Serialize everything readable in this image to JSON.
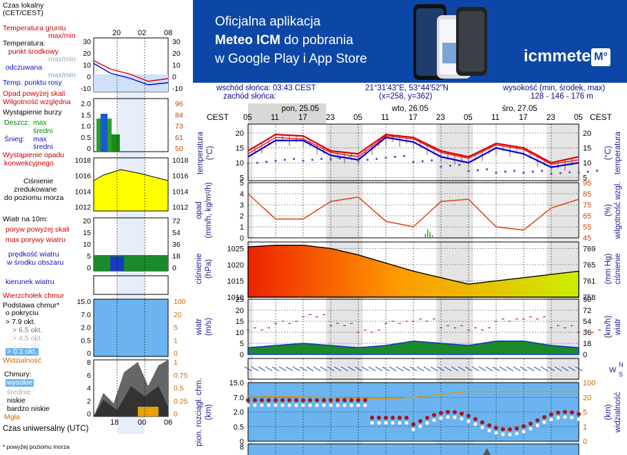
{
  "banner": {
    "line1": "Oficjalna aplikacja",
    "line2_bold": "Meteo ICM",
    "line2_rest": " do pobrania",
    "line3": "w Google Play i App Store",
    "logo": "icmmeteo",
    "logo_badge": "M°"
  },
  "info": {
    "sunrise": "wschód słońca: 03:43 CEST",
    "sunset": "zachód słońca:",
    "coords": "21°31'43\"E, 53°44'52\"N",
    "grid": "(x=258, y=362)",
    "height_label": "wysokość (min, środek, max)",
    "height_values": "128 - 146 - 176 m"
  },
  "legend": {
    "local_time": "Czas lokalny",
    "local_time_tz": "(CET/CEST)",
    "soil_temp": "Temperatura gruntu",
    "soil_temp_mm": "max/min",
    "temperature": "Temperatura:",
    "mid_point": "punkt środkowy",
    "max_min": "max/min",
    "apparent": "odczuwana",
    "dew_point": "Temp. punktu rosy",
    "precip_above": "Opad powyżej skali",
    "humidity": "Wilgotność względna",
    "thunder": "Wystąpienie burzy",
    "rain": "Deszcz:",
    "max": "max",
    "mean": "średni",
    "snow": "Śnieg:",
    "conv_precip": "Wystąpienie opadu",
    "conv_precip2": "konwekcyjnego",
    "pressure1": "Ciśnienie",
    "pressure2": "zredukowane",
    "pressure3": "do poziomu morza",
    "wind_10m": "Wiatr na 10m:",
    "gust_above": "poryw powyżej skali",
    "max_gust": "max porywy wiatru",
    "wind_speed": "prędkość wiatru",
    "wind_area": "w środku obszaru",
    "wind_dir": "kierunek wiatru",
    "cloud_top": "Wierzchołek chmur",
    "cloud_base": "Podstawa chmur*",
    "by_cover": "o pokryciu",
    "okt79": "> 7.9 okt.",
    "okt65": "> 6.5 okt.",
    "okt45": "> 4.5 okt.",
    "okt25": "> 2.5 okt.",
    "okt01": "> 0.1 okt.",
    "visibility": "Widzialność",
    "clouds": "Chmury:",
    "high": "wysokie",
    "middle": "średnie",
    "low": "niskie",
    "very_low": "bardzo niskie",
    "fog": "Mgła",
    "utc": "Czas uniwersalny (UTC)",
    "footnote": "* powyżej poziomu morza"
  },
  "mini_axes": {
    "local_ticks": [
      "20",
      "02",
      "08"
    ],
    "utc_ticks": [
      "18",
      "00",
      "06"
    ],
    "temp_left": [
      "30",
      "20",
      "10",
      "0",
      "-10"
    ],
    "temp_right": [
      "30",
      "20",
      "10",
      "0",
      "-10"
    ],
    "precip_left": [
      "2.0",
      "1.5",
      "1.0",
      "0.5",
      "0"
    ],
    "hum_right": [
      "96",
      "84",
      "73",
      "61",
      "50"
    ],
    "pres_left": [
      "1018",
      "1016",
      "1014",
      "1012"
    ],
    "pres_right": [
      "1018",
      "1016",
      "1014",
      "1012"
    ],
    "wind_left": [
      "20",
      "15",
      "10",
      "5",
      "0"
    ],
    "wind_right": [
      "72",
      "54",
      "36",
      "18",
      "0"
    ],
    "cb_left": [
      "15.0",
      "7.0",
      "2.0",
      "0.5",
      "0"
    ],
    "cb_right": [
      "100",
      "20",
      "5",
      "1",
      "0"
    ],
    "cl_left": [
      "8",
      "6",
      "4",
      "2",
      "0"
    ],
    "cl_right": [
      "1",
      "0.75",
      "0.5",
      "0.25",
      "0"
    ]
  },
  "main": {
    "cest": "CEST",
    "days": [
      "pon, 25.05",
      "wto, 26.05",
      "śro, 27.05"
    ],
    "hours": [
      "05",
      "11",
      "17",
      "23",
      "05",
      "11",
      "17",
      "23",
      "05",
      "11",
      "17",
      "23",
      "05"
    ],
    "temp_title": "temperatura",
    "temp_unit": "(°C)",
    "temp_ticks": [
      "20",
      "15",
      "10",
      "5"
    ],
    "precip_title": "opad",
    "precip_unit": "(mm/h, kg/m²/h)",
    "precip_ticks": [
      "5",
      "4",
      "3",
      "2",
      "1",
      "0"
    ],
    "hum_title": "wilgotność wzgl.",
    "hum_unit": "(%)",
    "hum_ticks": [
      "95",
      "85",
      "75",
      "65",
      "55",
      "45"
    ],
    "pres_title": "ciśnienie",
    "pres_unit": "(hPa)",
    "pres_ticks": [
      "1025",
      "1020",
      "1015",
      "1010"
    ],
    "pres_unit_r": "(mm Hg)",
    "pres_ticks_r": [
      "769",
      "765",
      "761",
      "758"
    ],
    "wind_title": "wiatr",
    "wind_unit": "(m/s)",
    "wind_ticks": [
      "25",
      "20",
      "15",
      "10",
      "5",
      "0"
    ],
    "wind_unit_r": "(km/h)",
    "wind_ticks_r": [
      "90",
      "72",
      "54",
      "36",
      "18",
      "0"
    ],
    "cb_title": "pion. rozciągł. chm.",
    "cb_unit": "(km)",
    "cb_ticks": [
      "15.0",
      "7.0",
      "2.0",
      "0.5",
      "0"
    ],
    "vis_title": "widzialność",
    "vis_unit": "(km)",
    "vis_ticks": [
      "100",
      "20",
      "5",
      "1",
      "0"
    ],
    "cl_tick": "8"
  },
  "colors": {
    "temp": "#dd0000",
    "apparent": "#0000dd",
    "dew": "#5555cc",
    "humidity": "#dd4411",
    "pres_hi": "#ee2200",
    "pres_lo": "#ccee00",
    "wind_lo": "#006600",
    "wind_hi": "#1133cc",
    "sky": "#6cb4ef",
    "banner": "#0c47a8"
  },
  "chart_data": [
    {
      "type": "line",
      "title": "temperatura",
      "ylabel": "(°C)",
      "ylim": [
        4,
        23
      ],
      "x": [
        "25.05 05",
        "25.05 11",
        "25.05 17",
        "25.05 23",
        "26.05 05",
        "26.05 11",
        "26.05 17",
        "26.05 23",
        "27.05 05",
        "27.05 11",
        "27.05 17",
        "27.05 23",
        "28.05 05"
      ],
      "series": [
        {
          "name": "max",
          "values": [
            14,
            19.5,
            19,
            14,
            13,
            19.5,
            18.5,
            14,
            12,
            16.5,
            15,
            10,
            12
          ]
        },
        {
          "name": "punkt środkowy",
          "values": [
            13,
            18.5,
            18,
            13.5,
            12,
            19,
            18,
            13.5,
            11.5,
            16,
            14.5,
            9.5,
            11
          ]
        },
        {
          "name": "odczuwana",
          "values": [
            12,
            17.5,
            17.5,
            12.5,
            11,
            18.5,
            17,
            12,
            10,
            15,
            13,
            8.5,
            10
          ]
        },
        {
          "name": "Temp. punktu rosy",
          "values": [
            10,
            11,
            11,
            11.5,
            11,
            12,
            10.5,
            9,
            7.5,
            7,
            7,
            6.5,
            7
          ]
        }
      ]
    },
    {
      "type": "line",
      "title": "wilgotność wzgl.",
      "ylabel": "(%)",
      "ylim": [
        45,
        95
      ],
      "x": [
        "25.05 05",
        "25.05 11",
        "25.05 17",
        "25.05 23",
        "26.05 05",
        "26.05 11",
        "26.05 17",
        "26.05 23",
        "27.05 05",
        "27.05 11",
        "27.05 17",
        "27.05 23",
        "28.05 05"
      ],
      "values": [
        85,
        62,
        62,
        78,
        82,
        60,
        55,
        78,
        80,
        55,
        52,
        72,
        80
      ]
    },
    {
      "type": "area",
      "title": "ciśnienie",
      "ylabel": "(hPa)",
      "ylim": [
        1010,
        1027
      ],
      "x": [
        "25.05 05",
        "25.05 11",
        "25.05 17",
        "25.05 23",
        "26.05 05",
        "26.05 11",
        "26.05 17",
        "26.05 23",
        "27.05 05",
        "27.05 11",
        "27.05 17",
        "27.05 23",
        "28.05 05"
      ],
      "values": [
        1025.5,
        1026,
        1026,
        1025,
        1023,
        1020.5,
        1018,
        1016,
        1014,
        1015,
        1016,
        1017,
        1018
      ]
    },
    {
      "type": "line",
      "title": "wiatr",
      "ylabel": "(m/s)",
      "ylim": [
        0,
        25
      ],
      "x": [
        "25.05 05",
        "25.05 11",
        "25.05 17",
        "25.05 23",
        "26.05 05",
        "26.05 11",
        "26.05 17",
        "26.05 23",
        "27.05 05",
        "27.05 11",
        "27.05 17",
        "27.05 23",
        "28.05 05"
      ],
      "series": [
        {
          "name": "max porywy wiatru",
          "values": [
            11,
            14,
            17,
            13,
            10,
            14,
            15,
            12,
            11,
            15,
            16,
            12,
            10
          ]
        },
        {
          "name": "prędkość wiatru",
          "values": [
            3,
            4,
            5,
            4,
            3,
            4,
            6,
            5,
            4,
            6,
            6,
            4,
            3
          ]
        }
      ]
    }
  ]
}
